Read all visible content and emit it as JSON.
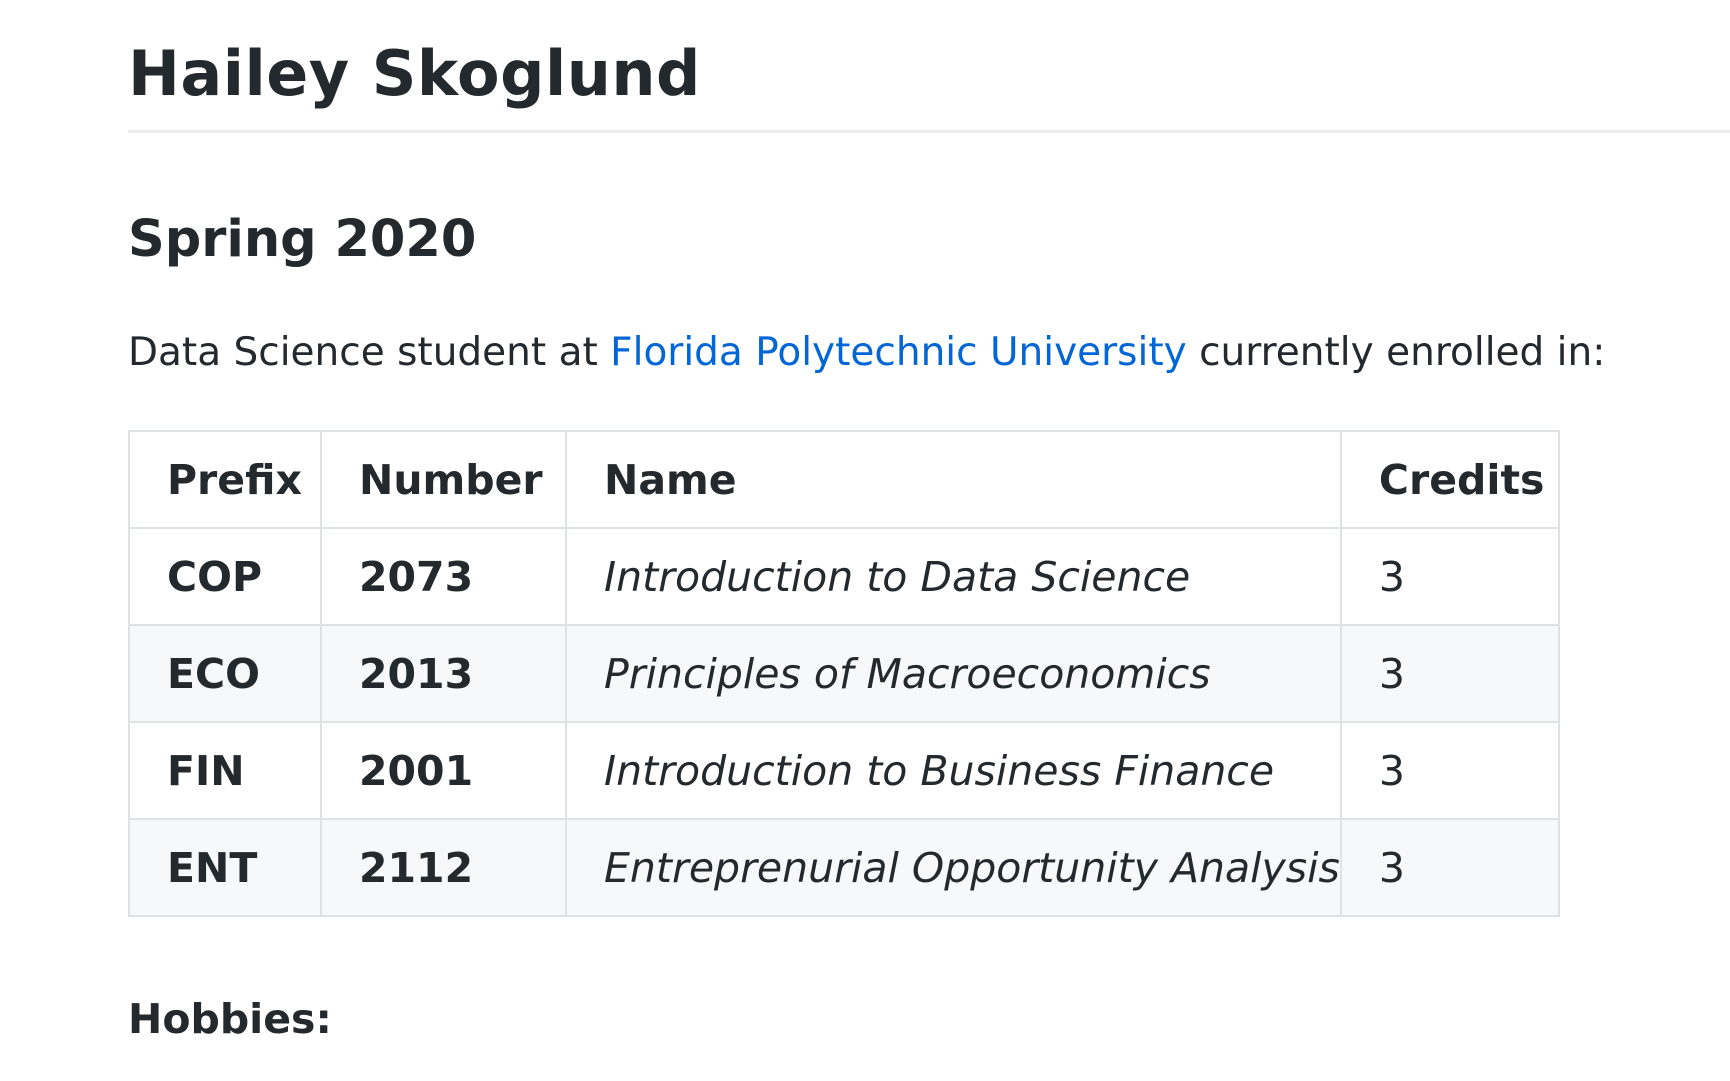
{
  "header": {
    "title": "Hailey Skoglund"
  },
  "section": {
    "term": "Spring 2020",
    "intro_before": "Data Science student at ",
    "university_link": "Florida Polytechnic University",
    "intro_after": " currently enrolled in:"
  },
  "courses": {
    "headers": [
      "Prefix",
      "Number",
      "Name",
      "Credits"
    ],
    "rows": [
      {
        "prefix": "COP",
        "number": "2073",
        "name": "Introduction to Data Science",
        "credits": "3"
      },
      {
        "prefix": "ECO",
        "number": "2013",
        "name": "Principles of Macroeconomics",
        "credits": "3"
      },
      {
        "prefix": "FIN",
        "number": "2001",
        "name": "Introduction to Business Finance",
        "credits": "3"
      },
      {
        "prefix": "ENT",
        "number": "2112",
        "name": "Entreprenurial Opportunity Analysis",
        "credits": "3"
      }
    ]
  },
  "hobbies": {
    "label": "Hobbies:"
  },
  "colors": {
    "text": "#24292e",
    "link": "#0366d6",
    "border": "#dfe2e5",
    "stripe": "#f6f8fa",
    "divider": "#eaecef"
  }
}
